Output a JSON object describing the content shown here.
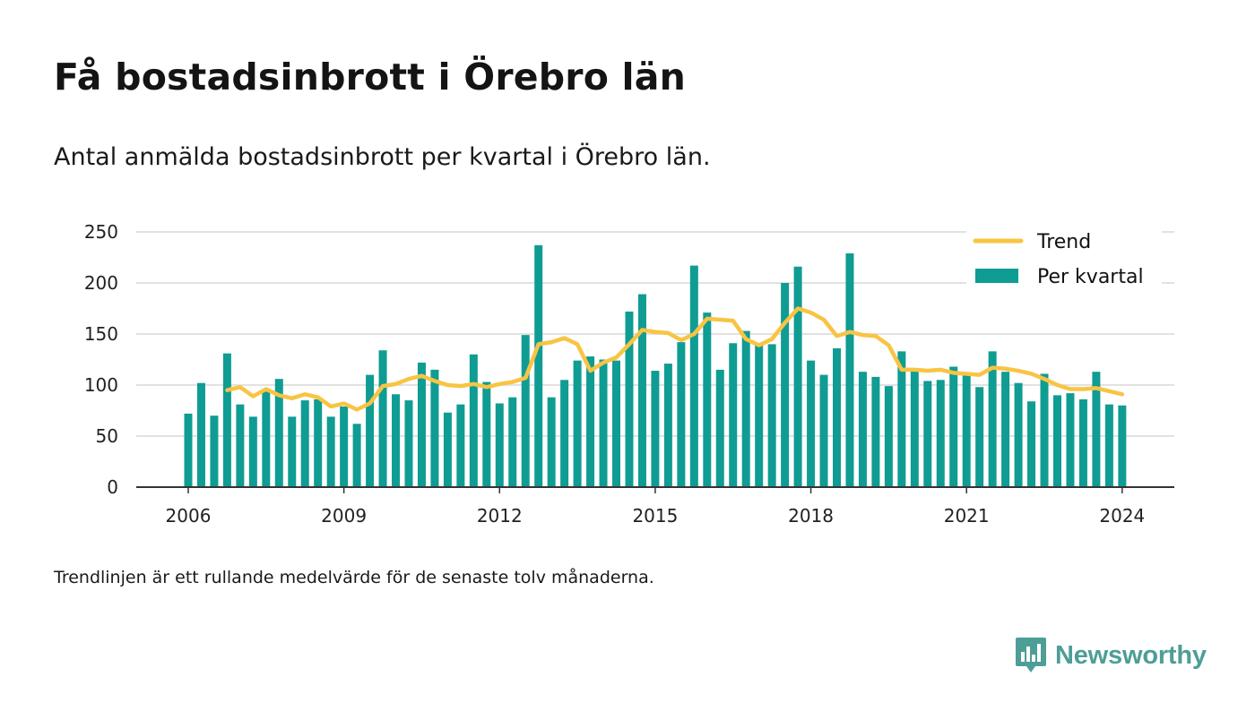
{
  "title": "Få bostadsinbrott i Örebro län",
  "subtitle": "Antal anmälda bostadsinbrott per kvartal i Örebro län.",
  "note": "Trendlinjen är ett rullande medelvärde för de senaste tolv månaderna.",
  "brand": {
    "name": "Newsworthy",
    "icon": "newsworthy-logo-icon"
  },
  "colors": {
    "bar": "#0f9c93",
    "trend": "#f8c443",
    "grid": "#d9d9d9",
    "axis": "#333333"
  },
  "chart_data": {
    "type": "bar",
    "title": "Få bostadsinbrott i Örebro län",
    "subtitle": "Antal anmälda bostadsinbrott per kvartal i Örebro län.",
    "ylim": [
      0,
      250
    ],
    "yticks": [
      "0",
      "50",
      "100",
      "150",
      "200",
      "250"
    ],
    "xticks": [
      "2006",
      "2009",
      "2012",
      "2015",
      "2018",
      "2021",
      "2024"
    ],
    "x_start": "2006 Q1",
    "grid": true,
    "legend_position": "top-right",
    "legend": [
      "Trend",
      "Per kvartal"
    ],
    "series": [
      {
        "name": "Per kvartal",
        "type": "bar",
        "color": "#0f9c93",
        "values": [
          72,
          102,
          70,
          131,
          81,
          69,
          94,
          106,
          69,
          85,
          86,
          69,
          79,
          62,
          110,
          134,
          91,
          85,
          122,
          115,
          73,
          81,
          130,
          103,
          82,
          88,
          149,
          237,
          88,
          105,
          124,
          128,
          125,
          124,
          172,
          189,
          114,
          121,
          142,
          217,
          171,
          115,
          141,
          153,
          140,
          140,
          200,
          216,
          124,
          110,
          136,
          229,
          113,
          108,
          99,
          133,
          116,
          104,
          105,
          118,
          111,
          98,
          133,
          113,
          102,
          84,
          111,
          90,
          92,
          86,
          113,
          81,
          80
        ]
      },
      {
        "name": "Trend",
        "type": "line",
        "color": "#f8c443",
        "start_index": 3,
        "values": [
          95,
          98,
          89,
          96,
          90,
          87,
          91,
          88,
          79,
          82,
          76,
          82,
          99,
          101,
          106,
          109,
          104,
          100,
          99,
          101,
          98,
          101,
          103,
          107,
          140,
          142,
          146,
          140,
          114,
          122,
          127,
          140,
          154,
          152,
          151,
          144,
          150,
          165,
          164,
          163,
          145,
          139,
          145,
          161,
          175,
          171,
          164,
          148,
          152,
          149,
          148,
          139,
          115,
          115,
          114,
          115,
          112,
          111,
          110,
          117,
          116,
          114,
          111,
          106,
          100,
          96,
          96,
          97,
          94,
          91
        ]
      }
    ]
  }
}
